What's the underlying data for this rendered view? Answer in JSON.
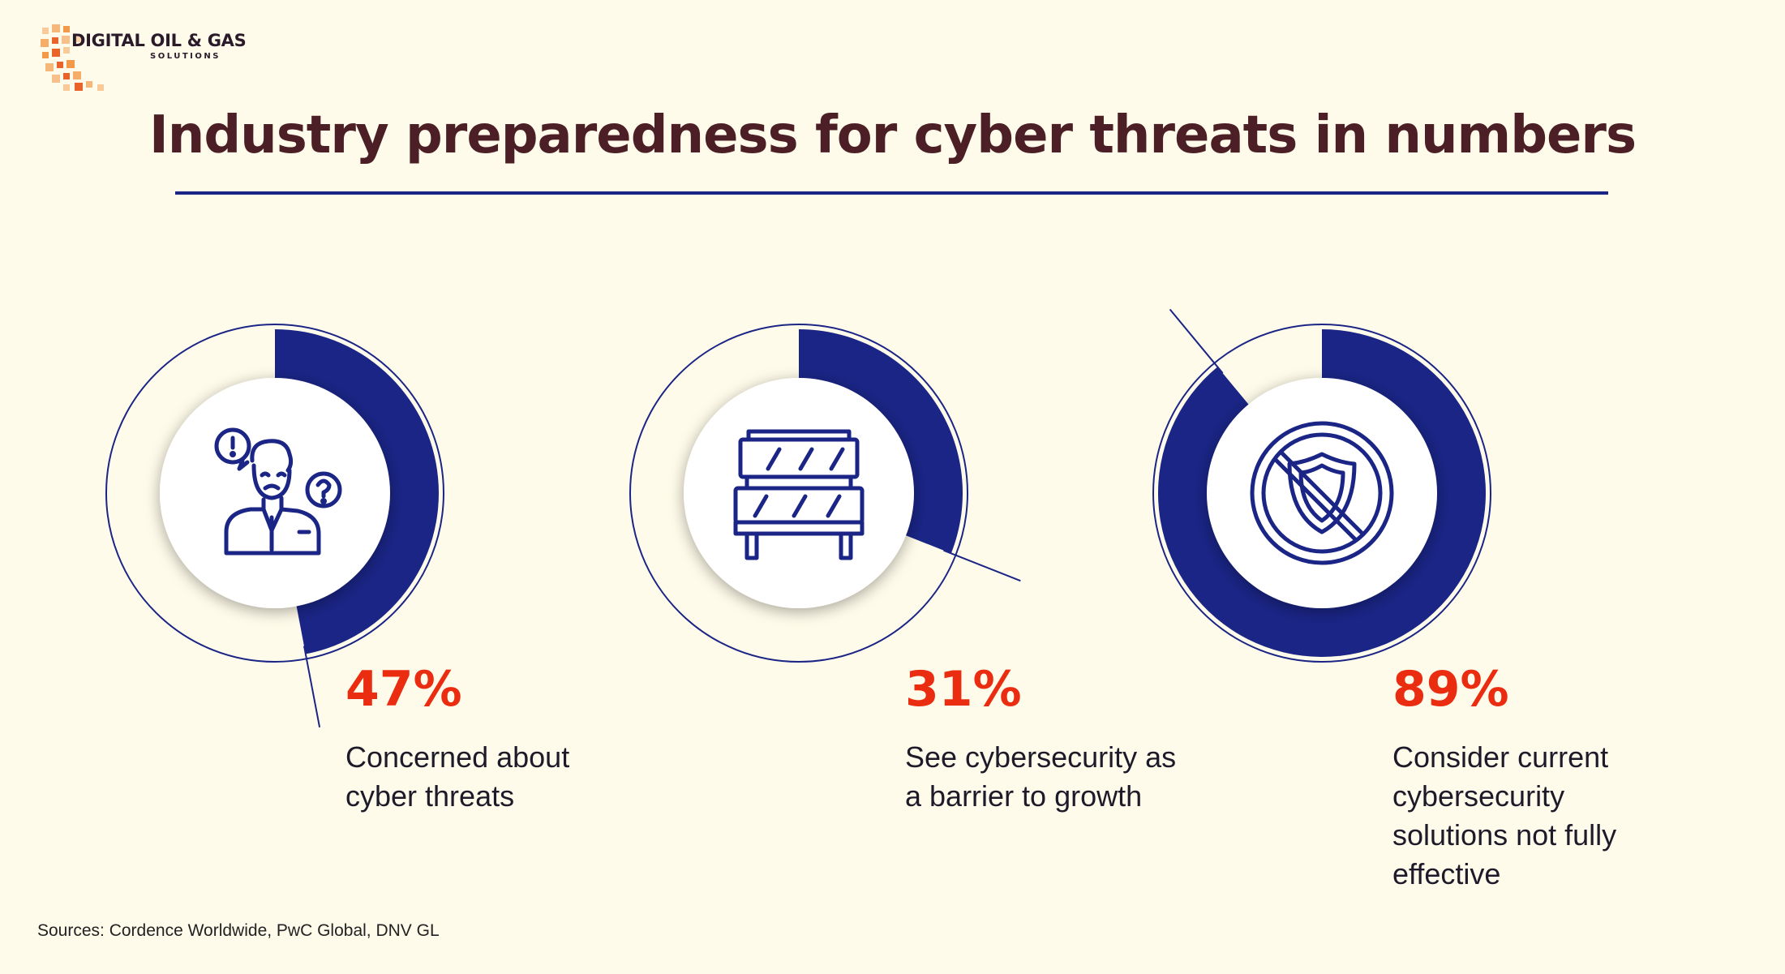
{
  "logo": {
    "line1": "DIGITAL OIL & GAS",
    "line2": "SOLUTIONS"
  },
  "title": "Industry preparedness for cyber threats in numbers",
  "colors": {
    "ring": "#1a2586",
    "accent": "#ea2c10",
    "title": "#4b1f25",
    "background": "#fffbea"
  },
  "chart_data": {
    "type": "pie",
    "charts": [
      {
        "value": 47,
        "label": "47%",
        "description": "Concerned about\ncyber threats",
        "icon": "worried-person-icon"
      },
      {
        "value": 31,
        "label": "31%",
        "description": "See cybersecurity as\na barrier to growth",
        "icon": "barrier-icon"
      },
      {
        "value": 89,
        "label": "89%",
        "description": "Consider current\ncybersecurity\nsolutions not fully\neffective",
        "icon": "no-shield-icon"
      }
    ]
  },
  "sources": "Sources: Cordence Worldwide, PwC Global, DNV GL"
}
